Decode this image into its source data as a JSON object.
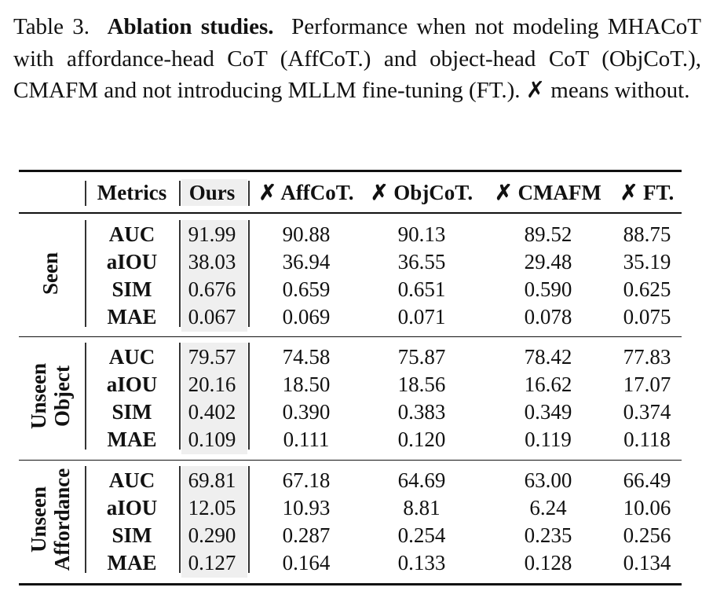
{
  "caption": {
    "label": "Table 3.",
    "title": "Ablation studies.",
    "text": "Performance when not modeling MHACoT with affordance-head CoT (AffCoT.) and object-head CoT (ObjCoT.), CMAFM and not introducing MLLM fine-tuning (FT.). ✗ means without."
  },
  "table": {
    "headers": [
      "Metrics",
      "Ours",
      "✗ AffCoT.",
      "✗ ObjCoT.",
      "✗ CMAFM",
      "✗ FT."
    ],
    "groups": [
      {
        "label_lines": [
          "Seen"
        ],
        "rows": [
          {
            "metric": "AUC",
            "values": [
              "91.99",
              "90.88",
              "90.13",
              "89.52",
              "88.75"
            ]
          },
          {
            "metric": "aIOU",
            "values": [
              "38.03",
              "36.94",
              "36.55",
              "29.48",
              "35.19"
            ]
          },
          {
            "metric": "SIM",
            "values": [
              "0.676",
              "0.659",
              "0.651",
              "0.590",
              "0.625"
            ]
          },
          {
            "metric": "MAE",
            "values": [
              "0.067",
              "0.069",
              "0.071",
              "0.078",
              "0.075"
            ]
          }
        ]
      },
      {
        "label_lines": [
          "Unseen",
          "Object"
        ],
        "rows": [
          {
            "metric": "AUC",
            "values": [
              "79.57",
              "74.58",
              "75.87",
              "78.42",
              "77.83"
            ]
          },
          {
            "metric": "aIOU",
            "values": [
              "20.16",
              "18.50",
              "18.56",
              "16.62",
              "17.07"
            ]
          },
          {
            "metric": "SIM",
            "values": [
              "0.402",
              "0.390",
              "0.383",
              "0.349",
              "0.374"
            ]
          },
          {
            "metric": "MAE",
            "values": [
              "0.109",
              "0.111",
              "0.120",
              "0.119",
              "0.118"
            ]
          }
        ]
      },
      {
        "label_lines": [
          "Unseen",
          "Affordance"
        ],
        "rows": [
          {
            "metric": "AUC",
            "values": [
              "69.81",
              "67.18",
              "64.69",
              "63.00",
              "66.49"
            ]
          },
          {
            "metric": "aIOU",
            "values": [
              "12.05",
              "10.93",
              "8.81",
              "6.24",
              "10.06"
            ]
          },
          {
            "metric": "SIM",
            "values": [
              "0.290",
              "0.287",
              "0.254",
              "0.235",
              "0.256"
            ]
          },
          {
            "metric": "MAE",
            "values": [
              "0.127",
              "0.164",
              "0.133",
              "0.128",
              "0.134"
            ]
          }
        ]
      }
    ]
  }
}
